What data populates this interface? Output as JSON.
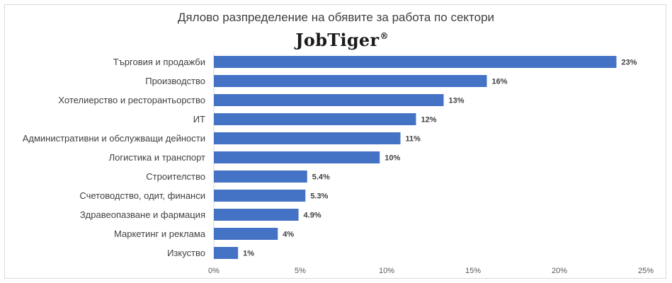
{
  "chart_data": {
    "type": "bar",
    "orientation": "horizontal",
    "title": "Дялово разпределение на обявите за работа по сектори",
    "brand": {
      "name": "JobTiger",
      "mark": "®"
    },
    "categories": [
      "Търговия и продажби",
      "Производство",
      "Хотелиерство и ресторантьорство",
      "ИТ",
      "Административни и обслужващи дейности",
      "Логистика и транспорт",
      "Строителство",
      "Счетоводство, одит, финанси",
      "Здравеопазване и фармация",
      "Маркетинг и реклама",
      "Изкуство"
    ],
    "values": [
      23.3,
      15.8,
      13.3,
      11.7,
      10.8,
      9.6,
      5.4,
      5.3,
      4.9,
      3.7,
      1.4
    ],
    "data_labels": [
      "23%",
      "16%",
      "13%",
      "12%",
      "11%",
      "10%",
      "5.4%",
      "5.3%",
      "4.9%",
      "4%",
      "1%"
    ],
    "xlim": [
      0,
      25
    ],
    "x_ticks": [
      0,
      5,
      10,
      15,
      20,
      25
    ],
    "x_tick_labels": [
      "0%",
      "5%",
      "10%",
      "15%",
      "20%",
      "25%"
    ],
    "grid": false,
    "legend": "none",
    "bar_color": "#4472c4"
  }
}
